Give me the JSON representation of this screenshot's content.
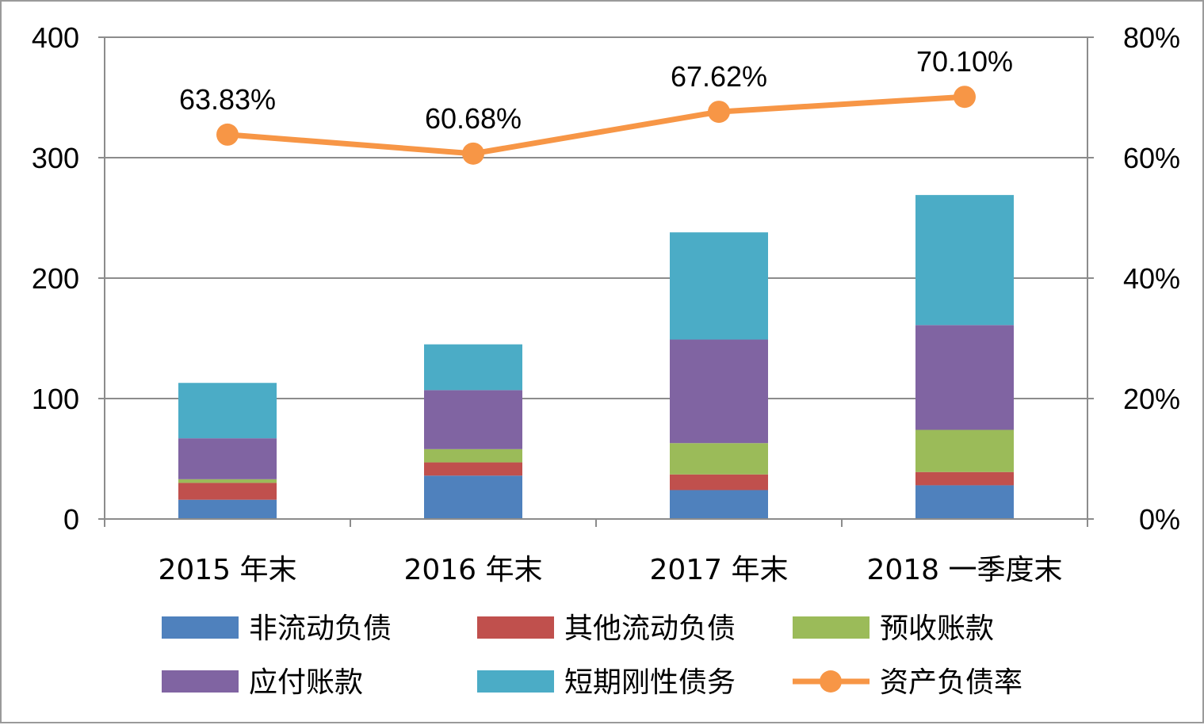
{
  "chart_data": {
    "type": "bar",
    "stacked": true,
    "categories": [
      "2015 年末",
      "2016 年末",
      "2017 年末",
      "2018 一季度末"
    ],
    "series": [
      {
        "name": "非流动负债",
        "type": "bar",
        "axis": "left",
        "color": "#4F81BD",
        "values": [
          16,
          36,
          24,
          28
        ]
      },
      {
        "name": "其他流动负债",
        "type": "bar",
        "axis": "left",
        "color": "#C0504D",
        "values": [
          14,
          11,
          13,
          11
        ]
      },
      {
        "name": "预收账款",
        "type": "bar",
        "axis": "left",
        "color": "#9BBB59",
        "values": [
          3,
          11,
          26,
          35
        ]
      },
      {
        "name": "应付账款",
        "type": "bar",
        "axis": "left",
        "color": "#8064A2",
        "values": [
          34,
          49,
          86,
          87
        ]
      },
      {
        "name": "短期刚性债务",
        "type": "bar",
        "axis": "left",
        "color": "#4BACC6",
        "values": [
          46,
          38,
          89,
          108
        ]
      },
      {
        "name": "资产负债率",
        "type": "line",
        "axis": "right",
        "color": "#F79646",
        "values": [
          63.83,
          60.68,
          67.62,
          70.1
        ],
        "labels": [
          "63.83%",
          "60.68%",
          "67.62%",
          "70.10%"
        ]
      }
    ],
    "left_axis": {
      "ylim": [
        0,
        400
      ],
      "ticks": [
        "0",
        "100",
        "200",
        "300",
        "400"
      ]
    },
    "right_axis": {
      "ylim": [
        0,
        80
      ],
      "ticks": [
        "0%",
        "20%",
        "40%",
        "60%",
        "80%"
      ]
    },
    "grid": true,
    "legend_position": "bottom",
    "title": "",
    "xlabel": "",
    "ylabel": ""
  }
}
